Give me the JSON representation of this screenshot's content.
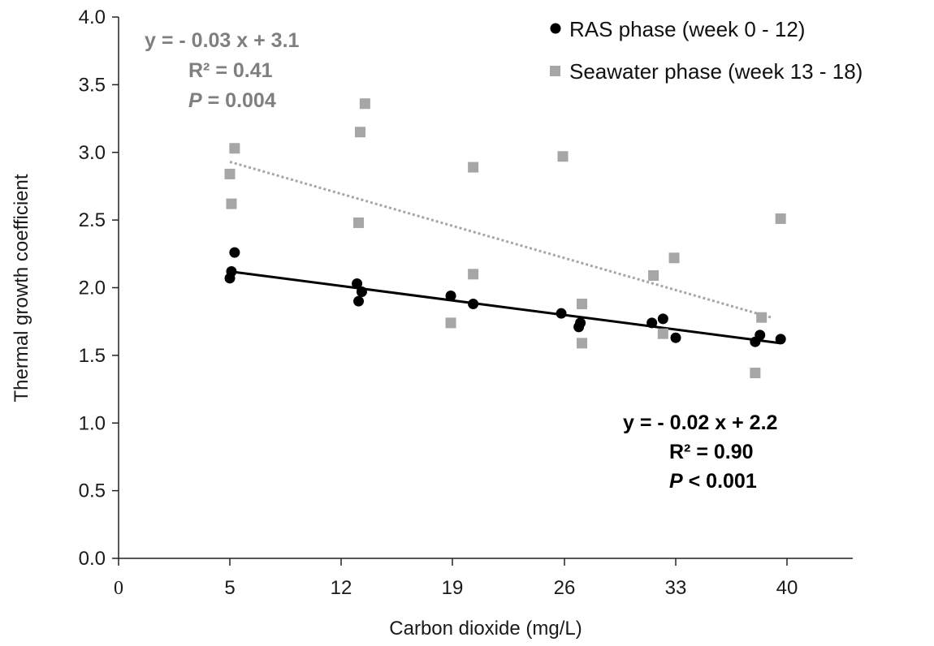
{
  "chart_data": {
    "type": "scatter",
    "xlabel": "Carbon dioxide (mg/L)",
    "ylabel": "Thermal growth coefficient",
    "xlim": [
      0,
      46
    ],
    "ylim": [
      0,
      4
    ],
    "x_ticks": [
      0,
      5,
      12,
      19,
      26,
      33,
      40
    ],
    "x_tick_labels": [
      "0",
      "5",
      "12",
      "19",
      "26",
      "33",
      "40"
    ],
    "y_ticks": [
      0,
      0.5,
      1,
      1.5,
      2,
      2.5,
      3,
      3.5,
      4
    ],
    "y_tick_labels": [
      "0.0",
      "0.5",
      "1.0",
      "1.5",
      "2.0",
      "2.5",
      "3.0",
      "3.5",
      "4.0"
    ],
    "grid": false,
    "legend_position": "top-right",
    "series": [
      {
        "name": "RAS phase (week 0 - 12)",
        "color": "#000000",
        "marker": "circle",
        "points": [
          [
            5.0,
            2.07
          ],
          [
            5.1,
            2.12
          ],
          [
            5.3,
            2.26
          ],
          [
            13.0,
            2.03
          ],
          [
            13.1,
            1.9
          ],
          [
            13.3,
            1.97
          ],
          [
            18.9,
            1.94
          ],
          [
            20.3,
            1.88
          ],
          [
            25.8,
            1.81
          ],
          [
            26.9,
            1.71
          ],
          [
            27.0,
            1.74
          ],
          [
            31.5,
            1.74
          ],
          [
            32.2,
            1.77
          ],
          [
            33.0,
            1.63
          ],
          [
            38.0,
            1.6
          ],
          [
            38.3,
            1.65
          ],
          [
            39.6,
            1.62
          ]
        ],
        "trendline": {
          "x": [
            5,
            39.6
          ],
          "y": [
            2.12,
            1.59
          ],
          "style": "solid"
        },
        "equation": [
          "y = - 0.02 x + 2.2",
          "R² = 0.90",
          "P",
          " < 0.001"
        ]
      },
      {
        "name": "Seawater phase (week 13 - 18)",
        "color": "#a6a6a6",
        "marker": "square",
        "points": [
          [
            5.0,
            2.84
          ],
          [
            5.1,
            2.62
          ],
          [
            5.3,
            3.03
          ],
          [
            13.1,
            2.48
          ],
          [
            13.2,
            3.15
          ],
          [
            13.5,
            3.36
          ],
          [
            18.9,
            1.74
          ],
          [
            20.3,
            2.89
          ],
          [
            20.3,
            2.1
          ],
          [
            25.9,
            2.97
          ],
          [
            27.1,
            1.88
          ],
          [
            27.1,
            1.59
          ],
          [
            31.6,
            2.09
          ],
          [
            32.2,
            1.66
          ],
          [
            32.9,
            2.22
          ],
          [
            38.0,
            1.37
          ],
          [
            38.4,
            1.78
          ],
          [
            39.6,
            2.51
          ]
        ],
        "trendline": {
          "x": [
            5,
            39
          ],
          "y": [
            2.93,
            1.78
          ],
          "style": "dotted"
        },
        "equation": [
          "y = - 0.03 x + 3.1",
          "R² = 0.41",
          "P",
          " = 0.004"
        ]
      }
    ]
  }
}
